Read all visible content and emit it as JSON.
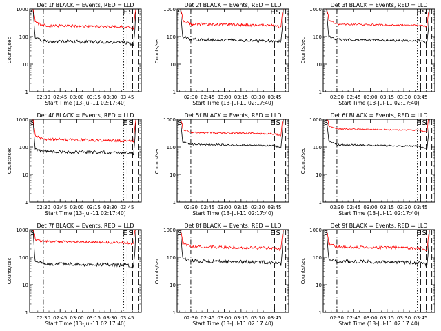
{
  "shared": {
    "xlabel": "Start Time (13-Jul-11 02:17:40)",
    "ylabel": "Counts/sec",
    "xtick_labels": [
      "02:30",
      "02:45",
      "03:00",
      "03:15",
      "03:30",
      "03:45"
    ],
    "ytick_labels": [
      "1",
      "10",
      "100",
      "1000"
    ],
    "xlim_minutes": [
      0,
      100
    ],
    "ylim": [
      1,
      1000
    ],
    "yscale": "log",
    "marker_labels": {
      "S": "S",
      "E": "E"
    },
    "colors": {
      "events": "#000000",
      "lld": "#ff0000",
      "axes": "#000000"
    }
  },
  "chart_data": [
    {
      "type": "line",
      "title": "Det 1f BLACK = Events, RED = LLD",
      "series": [
        {
          "name": "Events",
          "color": "#000000",
          "level": 65,
          "start": 95,
          "end": 50,
          "noise": 0.06
        },
        {
          "name": "LLD",
          "color": "#ff0000",
          "level": 240,
          "start": 330,
          "end": 190,
          "noise": 0.05
        }
      ],
      "vlines": [
        {
          "x": 12.3,
          "style": "dashdot"
        },
        {
          "x": 84.3,
          "style": "dotted"
        },
        {
          "x": 87.3,
          "style": "dashed",
          "label": "E"
        },
        {
          "x": 92.3,
          "style": "dashed",
          "label": "S"
        },
        {
          "x": 97.3,
          "style": "dashed"
        }
      ]
    },
    {
      "type": "line",
      "title": "Det 2f BLACK = Events, RED = LLD",
      "series": [
        {
          "name": "Events",
          "color": "#000000",
          "level": 75,
          "start": 100,
          "end": 65,
          "noise": 0.05
        },
        {
          "name": "LLD",
          "color": "#ff0000",
          "level": 270,
          "start": 380,
          "end": 220,
          "noise": 0.05
        }
      ],
      "vlines": [
        {
          "x": 12.3,
          "style": "dashdot"
        },
        {
          "x": 84.3,
          "style": "dotted"
        },
        {
          "x": 87.3,
          "style": "dashed",
          "label": "E"
        },
        {
          "x": 92.3,
          "style": "dashed",
          "label": "S"
        },
        {
          "x": 97.3,
          "style": "dashed"
        }
      ]
    },
    {
      "type": "line",
      "title": "Det 3f BLACK = Events, RED = LLD",
      "series": [
        {
          "name": "Events",
          "color": "#000000",
          "level": 75,
          "start": 100,
          "end": 60,
          "noise": 0.04
        },
        {
          "name": "LLD",
          "color": "#ff0000",
          "level": 270,
          "start": 380,
          "end": 230,
          "noise": 0.03
        }
      ],
      "vlines": [
        {
          "x": 12.3,
          "style": "dashdot"
        },
        {
          "x": 84.3,
          "style": "dotted"
        },
        {
          "x": 87.3,
          "style": "dashed",
          "label": "E"
        },
        {
          "x": 92.3,
          "style": "dashed",
          "label": "S"
        },
        {
          "x": 97.3,
          "style": "dashed"
        }
      ]
    },
    {
      "type": "line",
      "title": "Det 4f BLACK = Events, RED = LLD",
      "series": [
        {
          "name": "Events",
          "color": "#000000",
          "level": 65,
          "start": 85,
          "end": 55,
          "noise": 0.06
        },
        {
          "name": "LLD",
          "color": "#ff0000",
          "level": 180,
          "start": 250,
          "end": 165,
          "noise": 0.05
        }
      ],
      "vlines": [
        {
          "x": 12.3,
          "style": "dashdot"
        },
        {
          "x": 84.3,
          "style": "dotted"
        },
        {
          "x": 87.3,
          "style": "dashed",
          "label": "E"
        },
        {
          "x": 92.3,
          "style": "dashed",
          "label": "S"
        },
        {
          "x": 97.3,
          "style": "dashed"
        }
      ]
    },
    {
      "type": "line",
      "title": "Det 5f BLACK = Events, RED = LLD",
      "series": [
        {
          "name": "Events",
          "color": "#000000",
          "level": 120,
          "start": 150,
          "end": 95,
          "noise": 0.03
        },
        {
          "name": "LLD",
          "color": "#ff0000",
          "level": 320,
          "start": 430,
          "end": 260,
          "noise": 0.03
        }
      ],
      "vlines": [
        {
          "x": 12.3,
          "style": "dashdot"
        },
        {
          "x": 84.3,
          "style": "dotted"
        },
        {
          "x": 87.3,
          "style": "dashed",
          "label": "E"
        },
        {
          "x": 92.3,
          "style": "dashed",
          "label": "S"
        },
        {
          "x": 97.3,
          "style": "dashed"
        }
      ]
    },
    {
      "type": "line",
      "title": "Det 6f BLACK = Events, RED = LLD",
      "series": [
        {
          "name": "Events",
          "color": "#000000",
          "level": 115,
          "start": 170,
          "end": 85,
          "noise": 0.03
        },
        {
          "name": "LLD",
          "color": "#ff0000",
          "level": 430,
          "start": 560,
          "end": 340,
          "noise": 0.02
        }
      ],
      "vlines": [
        {
          "x": 12.3,
          "style": "dashdot"
        },
        {
          "x": 84.3,
          "style": "dotted"
        },
        {
          "x": 87.3,
          "style": "dashed",
          "label": "E"
        },
        {
          "x": 92.3,
          "style": "dashed",
          "label": "S"
        },
        {
          "x": 97.3,
          "style": "dashed"
        }
      ]
    },
    {
      "type": "line",
      "title": "Det 7f BLACK = Events, RED = LLD",
      "series": [
        {
          "name": "Events",
          "color": "#000000",
          "level": 55,
          "start": 70,
          "end": 45,
          "noise": 0.06
        },
        {
          "name": "LLD",
          "color": "#ff0000",
          "level": 360,
          "start": 430,
          "end": 300,
          "noise": 0.04
        }
      ],
      "vlines": [
        {
          "x": 12.3,
          "style": "dashdot"
        },
        {
          "x": 84.3,
          "style": "dotted"
        },
        {
          "x": 87.3,
          "style": "dashed",
          "label": "E"
        },
        {
          "x": 92.3,
          "style": "dashed",
          "label": "S"
        },
        {
          "x": 97.3,
          "style": "dashed"
        }
      ]
    },
    {
      "type": "line",
      "title": "Det 8f BLACK = Events, RED = LLD",
      "series": [
        {
          "name": "Events",
          "color": "#000000",
          "level": 70,
          "start": 95,
          "end": 55,
          "noise": 0.06
        },
        {
          "name": "LLD",
          "color": "#ff0000",
          "level": 230,
          "start": 320,
          "end": 190,
          "noise": 0.05
        }
      ],
      "vlines": [
        {
          "x": 12.3,
          "style": "dashdot"
        },
        {
          "x": 84.3,
          "style": "dotted"
        },
        {
          "x": 87.3,
          "style": "dashed",
          "label": "E"
        },
        {
          "x": 92.3,
          "style": "dashed",
          "label": "S"
        },
        {
          "x": 97.3,
          "style": "dashed"
        }
      ]
    },
    {
      "type": "line",
      "title": "Det 9f BLACK = Events, RED = LLD",
      "series": [
        {
          "name": "Events",
          "color": "#000000",
          "level": 68,
          "start": 90,
          "end": 55,
          "noise": 0.06
        },
        {
          "name": "LLD",
          "color": "#ff0000",
          "level": 230,
          "start": 310,
          "end": 180,
          "noise": 0.05
        }
      ],
      "vlines": [
        {
          "x": 12.3,
          "style": "dashdot"
        },
        {
          "x": 84.3,
          "style": "dotted"
        },
        {
          "x": 87.3,
          "style": "dashed",
          "label": "E"
        },
        {
          "x": 92.3,
          "style": "dashed",
          "label": "S"
        },
        {
          "x": 97.3,
          "style": "dashed"
        }
      ]
    }
  ]
}
